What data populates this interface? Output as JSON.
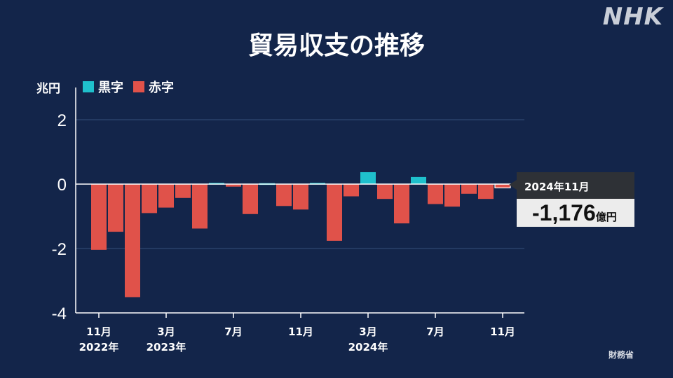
{
  "brand": "NHK",
  "title": "貿易収支の推移",
  "source": "財務省",
  "colors": {
    "surplus": "#1fc0cc",
    "deficit": "#e0524a",
    "background": "#13254a"
  },
  "chart_data": {
    "type": "bar",
    "ylabel": "兆円",
    "ylim": [
      -4,
      3
    ],
    "yticks": [
      2,
      0,
      -2,
      -4
    ],
    "grid": true,
    "legend": [
      {
        "name": "黒字",
        "color": "#1fc0cc"
      },
      {
        "name": "赤字",
        "color": "#e0524a"
      }
    ],
    "legend_position": "top-left",
    "categories": [
      "2022-11",
      "2022-12",
      "2023-01",
      "2023-02",
      "2023-03",
      "2023-04",
      "2023-05",
      "2023-06",
      "2023-07",
      "2023-08",
      "2023-09",
      "2023-10",
      "2023-11",
      "2023-12",
      "2024-01",
      "2024-02",
      "2024-03",
      "2024-04",
      "2024-05",
      "2024-06",
      "2024-07",
      "2024-08",
      "2024-09",
      "2024-10",
      "2024-11"
    ],
    "values": [
      -2.04,
      -1.48,
      -3.51,
      -0.9,
      -0.73,
      -0.43,
      -1.38,
      0.04,
      -0.08,
      -0.93,
      0.03,
      -0.68,
      -0.79,
      0.04,
      -1.76,
      -0.38,
      0.37,
      -0.46,
      -1.22,
      0.22,
      -0.62,
      -0.7,
      -0.3,
      -0.46,
      -0.1176
    ],
    "x_tick_labels": [
      {
        "index": 0,
        "month": "11月",
        "year": "2022年"
      },
      {
        "index": 4,
        "month": "3月",
        "year": "2023年"
      },
      {
        "index": 8,
        "month": "7月",
        "year": ""
      },
      {
        "index": 12,
        "month": "11月",
        "year": ""
      },
      {
        "index": 16,
        "month": "3月",
        "year": "2024年"
      },
      {
        "index": 20,
        "month": "7月",
        "year": ""
      },
      {
        "index": 24,
        "month": "11月",
        "year": ""
      }
    ],
    "annotation": {
      "index": 24,
      "label": "2024年11月",
      "value": "-1,176",
      "unit": "億円"
    }
  }
}
